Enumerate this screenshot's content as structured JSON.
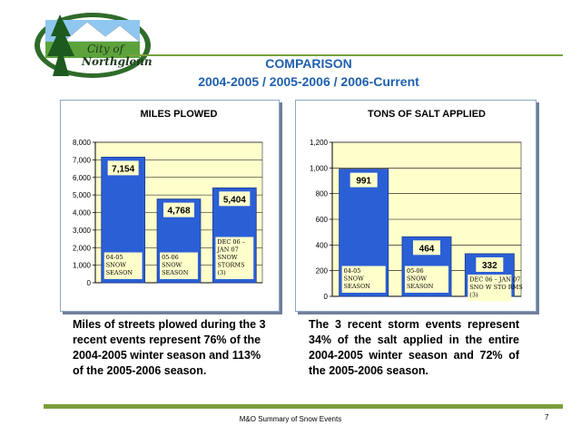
{
  "logo": {
    "line1": "City of",
    "line2": "Northglenn"
  },
  "header": {
    "title_line1": "COMPARISON",
    "title_line2": "2004-2005 / 2005-2006 / 2006-Current"
  },
  "chart_data": [
    {
      "type": "bar",
      "title": "MILES PLOWED",
      "categories": [
        "04-05 SNOW SEASON",
        "05-06 SNOW SEASON",
        "DEC 06 – JAN 07 SNOW STORMS (3)"
      ],
      "category_label_lines": [
        [
          "04-05",
          "SNOW",
          "SEASON"
        ],
        [
          "05-06",
          "SNOW",
          "SEASON"
        ],
        [
          "DEC 06 –",
          "JAN 07",
          "SNOW",
          "STORMS",
          "(3)"
        ]
      ],
      "values": [
        7154,
        4768,
        5404
      ],
      "value_labels": [
        "7,154",
        "4,768",
        "5,404"
      ],
      "ylim": [
        0,
        8000
      ],
      "yticks": [
        0,
        1000,
        2000,
        3000,
        4000,
        5000,
        6000,
        7000,
        8000
      ],
      "ytick_labels": [
        "0",
        "1,000",
        "2,000",
        "3,000",
        "4,000",
        "5,000",
        "6,000",
        "7,000",
        "8,000"
      ],
      "grid": true,
      "bar_color": "#2b5fd6",
      "plot_bg": "#ffffcc"
    },
    {
      "type": "bar",
      "title": "TONS OF SALT APPLIED",
      "categories": [
        "04-05 SNOW SEASON",
        "05-06 SNOW SEASON",
        "DEC 06 – JAN 07 SNO W STO RMS (3)"
      ],
      "category_label_lines": [
        [
          "04-05",
          "SNOW",
          "SEASON"
        ],
        [
          "05-06",
          "SNOW",
          "SEASON"
        ],
        [
          "DEC 06 – JAN 07",
          "SNO W STO RMS",
          "(3)"
        ]
      ],
      "values": [
        991,
        464,
        332
      ],
      "value_labels": [
        "991",
        "464",
        "332"
      ],
      "ylim": [
        0,
        1200
      ],
      "yticks": [
        0,
        200,
        400,
        600,
        800,
        1000,
        1200
      ],
      "ytick_labels": [
        "0",
        "200",
        "400",
        "600",
        "800",
        "1,000",
        "1,200"
      ],
      "grid": true,
      "bar_color": "#2b5fd6",
      "plot_bg": "#ffffcc"
    }
  ],
  "text": {
    "left_paragraph": "Miles of streets plowed during the 3 recent events represent 76% of the 2004-2005 winter season and 113% of the 2005-2006 season.",
    "right_paragraph": "The 3 recent storm events represent 34% of the salt applied in the entire 2004-2005 winter season and 72% of the 2005-2006 season."
  },
  "footer": {
    "text": "M&O Summary of Snow Events",
    "page_number": "7"
  },
  "colors": {
    "accent_green": "#7aa03c",
    "title_blue": "#1f5fae",
    "bar_blue": "#2b5fd6",
    "plot_yellow": "#ffffcc"
  }
}
